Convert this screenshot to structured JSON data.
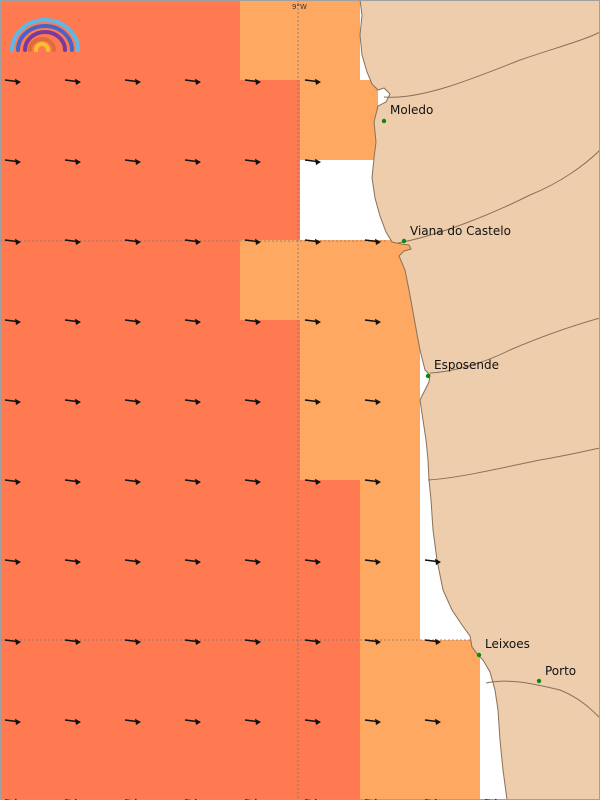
{
  "colors": {
    "sea_high": "#ff7a50",
    "sea_mid": "#ffa862",
    "land": "#eecdac",
    "coast": "#8a7058",
    "grid": "#777777",
    "border": "#a0a0a0",
    "city_marker": "#0a8a0a",
    "arrow": "#111111",
    "logo_colors": [
      "#5fb8e6",
      "#4a63c8",
      "#7a3a9c",
      "#e06a3a",
      "#f4c030"
    ]
  },
  "map": {
    "graticule": {
      "longitude_label": "9°W"
    },
    "places": [
      {
        "id": "moledo",
        "name": "Moledo"
      },
      {
        "id": "viana",
        "name": "Viana do Castelo"
      },
      {
        "id": "esposende",
        "name": "Esposende"
      },
      {
        "id": "leixoes",
        "name": "Leixoes"
      },
      {
        "id": "porto",
        "name": "Porto"
      }
    ],
    "wave_direction": "east",
    "logo_icon": "rainbow-logo-icon"
  }
}
